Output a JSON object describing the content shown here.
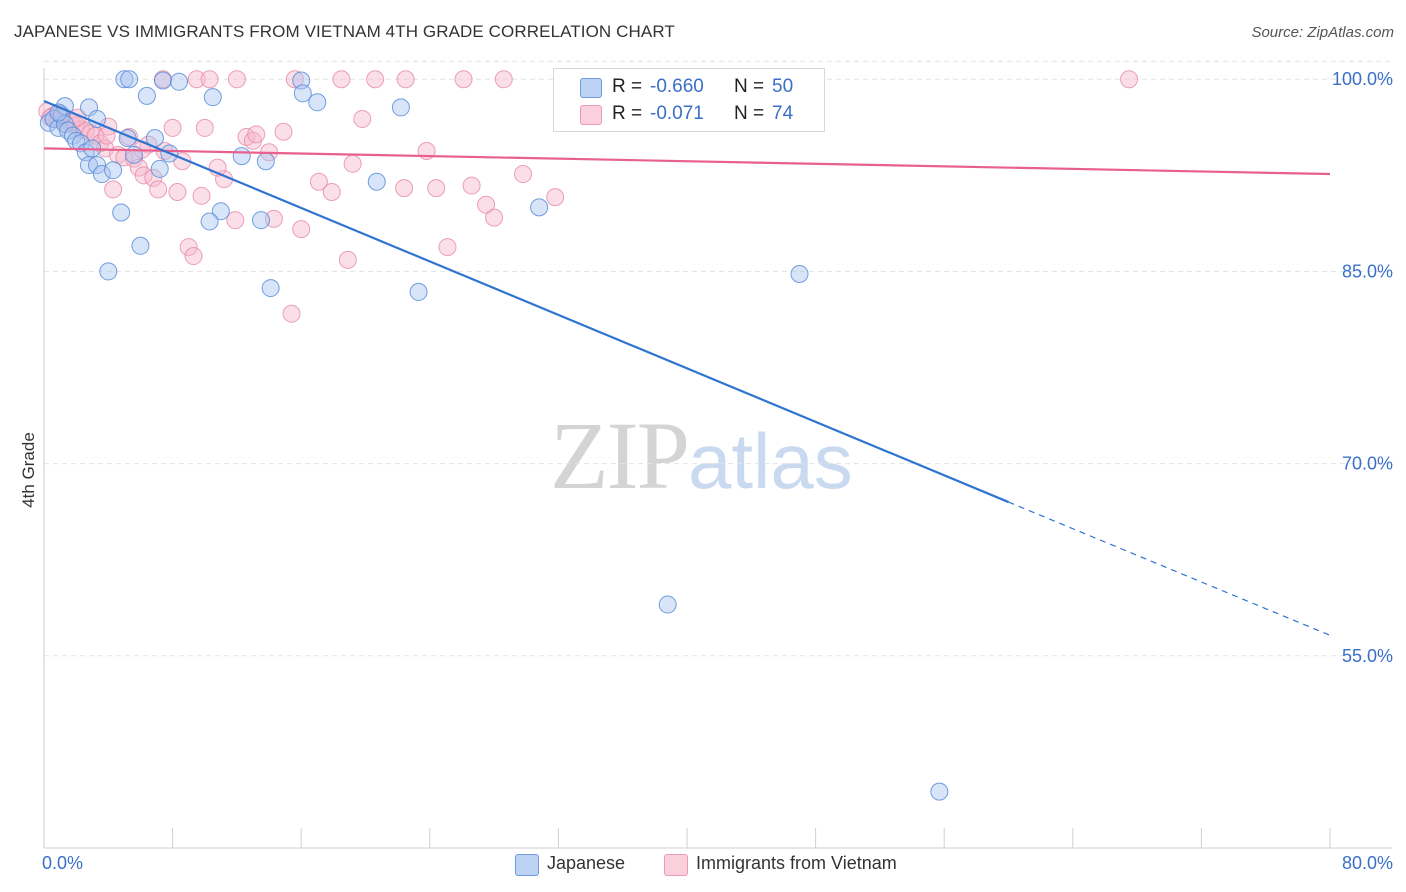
{
  "header": {
    "title": "JAPANESE VS IMMIGRANTS FROM VIETNAM 4TH GRADE CORRELATION CHART",
    "source": "Source: ZipAtlas.com"
  },
  "watermark": {
    "zip": "ZIP",
    "atlas": "atlas"
  },
  "colors": {
    "japanese_fill": "#a9c4ef",
    "japanese_stroke": "#5b8ed8",
    "japanese_line": "#2f74d0",
    "vietnam_fill": "#f7b8cc",
    "vietnam_stroke": "#e68aa8",
    "vietnam_line": "#e8608c",
    "tick_text": "#3a6fc9",
    "grid": "#e3e3e3"
  },
  "legend_top": {
    "rows": [
      {
        "r_label": "R =",
        "r_value": "-0.660",
        "n_label": "N =",
        "n_value": "50"
      },
      {
        "r_label": "R =",
        "r_value": "-0.071",
        "n_label": "N =",
        "n_value": "74"
      }
    ]
  },
  "legend_bottom": {
    "items": [
      {
        "label": "Japanese"
      },
      {
        "label": "Immigrants from Vietnam"
      }
    ]
  },
  "chart_data": {
    "type": "scatter",
    "title": "JAPANESE VS IMMIGRANTS FROM VIETNAM 4TH GRADE CORRELATION CHART",
    "ylabel": "4th Grade",
    "xlabel": "",
    "xlim": [
      0,
      80
    ],
    "ylim": [
      40,
      101.5
    ],
    "x_tick_labels": [
      "0.0%",
      "80.0%"
    ],
    "y_ticks": [
      55,
      70,
      85,
      100
    ],
    "y_tick_labels": [
      "55.0%",
      "70.0%",
      "85.0%",
      "100.0%"
    ],
    "grid": true,
    "legend_placement": "top-center / bottom",
    "series": [
      {
        "name": "Japanese",
        "points": [
          [
            0.3,
            96.6
          ],
          [
            0.6,
            96.9
          ],
          [
            0.9,
            96.2
          ],
          [
            1.1,
            97.2
          ],
          [
            1.3,
            96.5
          ],
          [
            1.5,
            96.0
          ],
          [
            1.8,
            95.6
          ],
          [
            2.0,
            95.2
          ],
          [
            2.3,
            95.0
          ],
          [
            2.6,
            94.3
          ],
          [
            2.8,
            93.3
          ],
          [
            3.0,
            94.6
          ],
          [
            3.3,
            93.3
          ],
          [
            3.6,
            92.6
          ],
          [
            4.0,
            85.0
          ],
          [
            4.3,
            92.9
          ],
          [
            4.8,
            89.6
          ],
          [
            5.2,
            95.4
          ],
          [
            5.6,
            94.1
          ],
          [
            6.0,
            87.0
          ],
          [
            6.4,
            98.7
          ],
          [
            6.9,
            95.4
          ],
          [
            7.2,
            93.0
          ],
          [
            7.4,
            99.9
          ],
          [
            7.8,
            94.2
          ],
          [
            10.5,
            98.6
          ],
          [
            11.0,
            89.7
          ],
          [
            12.3,
            94.0
          ],
          [
            13.8,
            93.6
          ],
          [
            14.1,
            83.7
          ],
          [
            16.0,
            99.9
          ],
          [
            16.1,
            98.9
          ],
          [
            17.0,
            98.2
          ],
          [
            20.7,
            92.0
          ],
          [
            22.2,
            97.8
          ],
          [
            23.3,
            83.4
          ],
          [
            30.8,
            90.0
          ],
          [
            38.5,
            100.0
          ],
          [
            38.8,
            59.0
          ],
          [
            47.0,
            84.8
          ],
          [
            55.7,
            44.4
          ],
          [
            5.0,
            100.0
          ],
          [
            5.3,
            100.0
          ],
          [
            8.4,
            99.8
          ],
          [
            13.5,
            89.0
          ],
          [
            10.3,
            88.9
          ],
          [
            2.8,
            97.8
          ],
          [
            1.3,
            97.9
          ],
          [
            3.3,
            96.9
          ],
          [
            0.9,
            97.4
          ]
        ],
        "trend_line": {
          "x": [
            0,
            60
          ],
          "y": [
            98.3,
            67.0
          ],
          "dashed_extension": {
            "x": [
              60,
              80
            ],
            "y": [
              67.0,
              56.6
            ]
          }
        }
      },
      {
        "name": "Immigrants from Vietnam",
        "points": [
          [
            0.2,
            97.5
          ],
          [
            0.5,
            97.1
          ],
          [
            0.8,
            96.9
          ],
          [
            1.1,
            97.0
          ],
          [
            1.4,
            96.5
          ],
          [
            1.7,
            96.6
          ],
          [
            2.0,
            96.4
          ],
          [
            2.3,
            96.1
          ],
          [
            2.6,
            96.0
          ],
          [
            2.9,
            95.8
          ],
          [
            3.2,
            95.6
          ],
          [
            3.5,
            95.0
          ],
          [
            3.8,
            94.6
          ],
          [
            4.0,
            96.3
          ],
          [
            4.3,
            91.4
          ],
          [
            4.6,
            94.1
          ],
          [
            5.0,
            93.9
          ],
          [
            5.3,
            95.5
          ],
          [
            5.6,
            93.8
          ],
          [
            5.9,
            93.1
          ],
          [
            6.2,
            92.5
          ],
          [
            6.5,
            94.9
          ],
          [
            6.8,
            92.3
          ],
          [
            7.1,
            91.4
          ],
          [
            7.4,
            100.0
          ],
          [
            8.0,
            96.2
          ],
          [
            8.3,
            91.2
          ],
          [
            8.6,
            93.6
          ],
          [
            9.0,
            86.9
          ],
          [
            9.3,
            86.2
          ],
          [
            9.5,
            100.0
          ],
          [
            10.0,
            96.2
          ],
          [
            10.3,
            100.0
          ],
          [
            11.2,
            92.2
          ],
          [
            11.9,
            89.0
          ],
          [
            12.6,
            95.5
          ],
          [
            13.0,
            95.2
          ],
          [
            14.0,
            94.3
          ],
          [
            14.3,
            89.1
          ],
          [
            14.9,
            95.9
          ],
          [
            15.4,
            81.7
          ],
          [
            16.0,
            88.3
          ],
          [
            17.1,
            92.0
          ],
          [
            17.9,
            91.2
          ],
          [
            18.5,
            100.0
          ],
          [
            18.9,
            85.9
          ],
          [
            19.2,
            93.4
          ],
          [
            19.8,
            96.9
          ],
          [
            20.6,
            100.0
          ],
          [
            22.4,
            91.5
          ],
          [
            23.8,
            94.4
          ],
          [
            24.4,
            91.5
          ],
          [
            25.1,
            86.9
          ],
          [
            26.1,
            100.0
          ],
          [
            26.6,
            91.7
          ],
          [
            27.5,
            90.2
          ],
          [
            28.0,
            89.2
          ],
          [
            28.6,
            100.0
          ],
          [
            29.8,
            92.6
          ],
          [
            31.8,
            90.8
          ],
          [
            41.5,
            100.0
          ],
          [
            67.5,
            100.0
          ],
          [
            9.8,
            90.9
          ],
          [
            13.2,
            95.7
          ],
          [
            12.0,
            100.0
          ],
          [
            15.6,
            100.0
          ],
          [
            7.5,
            94.4
          ],
          [
            6.1,
            94.5
          ],
          [
            3.9,
            95.6
          ],
          [
            2.1,
            97.0
          ],
          [
            1.0,
            97.3
          ],
          [
            0.4,
            97.0
          ],
          [
            10.8,
            93.1
          ],
          [
            22.5,
            100.0
          ]
        ],
        "trend_line": {
          "x": [
            0,
            80
          ],
          "y": [
            94.6,
            92.6
          ]
        }
      }
    ]
  }
}
